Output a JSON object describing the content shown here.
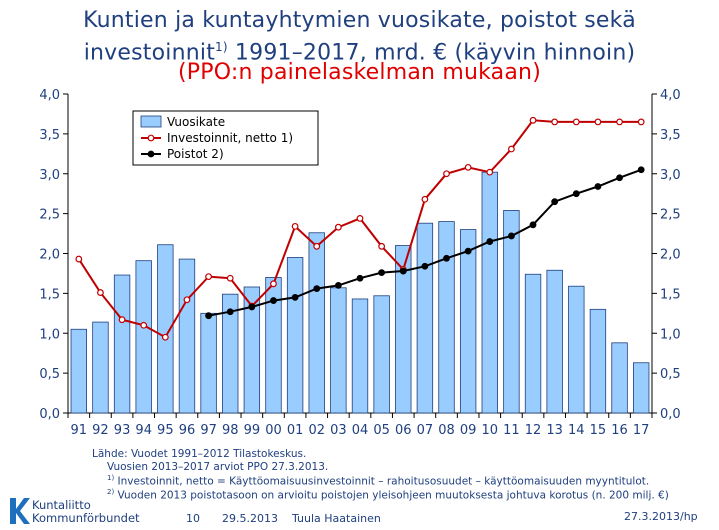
{
  "title": {
    "line1": "Kuntien ja kuntayhtymien vuosikate, poistot sekä",
    "line2_pre": "investoinnit",
    "line2_sup": "1)",
    "line2_post": " 1991–2017, mrd. € (käyvin hinnoin)",
    "line3": "(PPO:n painelaskelman mukaan)"
  },
  "colors": {
    "bar_fill": "#99ccff",
    "bar_stroke": "#1f3f7f",
    "investoinnit": "#c00000",
    "poistot": "#000000",
    "text": "#1f3f7f",
    "subtitle": "#e00000"
  },
  "chart_data": {
    "type": "bar+line",
    "categories": [
      "91",
      "92",
      "93",
      "94",
      "95",
      "96",
      "97",
      "98",
      "99",
      "00",
      "01",
      "02",
      "03",
      "04",
      "05",
      "06",
      "07",
      "08",
      "09",
      "10",
      "11",
      "12",
      "13",
      "14",
      "15",
      "16",
      "17"
    ],
    "y_ticks": [
      "0,0",
      "0,5",
      "1,0",
      "1,5",
      "2,0",
      "2,5",
      "3,0",
      "3,5",
      "4,0"
    ],
    "ylim": [
      0,
      4.0
    ],
    "grid": false,
    "legend_position": "top-left",
    "series": [
      {
        "name": "Vuosikate",
        "kind": "bar",
        "values": [
          1.05,
          1.14,
          1.73,
          1.91,
          2.11,
          1.93,
          1.25,
          1.49,
          1.58,
          1.7,
          1.95,
          2.26,
          1.57,
          1.43,
          1.47,
          2.1,
          2.38,
          2.4,
          2.3,
          3.02,
          2.54,
          1.74,
          1.79,
          1.59,
          1.3,
          0.88,
          0.63
        ]
      },
      {
        "name": "Investoinnit, netto 1)",
        "kind": "line-open-marker",
        "values": [
          1.93,
          1.51,
          1.17,
          1.1,
          0.95,
          1.42,
          1.71,
          1.69,
          1.34,
          1.62,
          2.34,
          2.09,
          2.33,
          2.44,
          2.09,
          1.8,
          2.68,
          3.0,
          3.08,
          3.02,
          3.31,
          3.67,
          3.65,
          3.65,
          3.65,
          3.65,
          3.65
        ]
      },
      {
        "name": "Poistot 2)",
        "kind": "line-filled-marker",
        "values": [
          null,
          null,
          null,
          null,
          null,
          null,
          1.22,
          1.27,
          1.33,
          1.41,
          1.45,
          1.56,
          1.6,
          1.69,
          1.76,
          1.78,
          1.84,
          1.94,
          2.03,
          2.15,
          2.22,
          2.36,
          2.65,
          2.75,
          2.84,
          2.95,
          3.05
        ]
      }
    ]
  },
  "footnotes": {
    "source1": "Lähde: Vuodet 1991–2012 Tilastokeskus.",
    "source2": "Vuosien 2013–2017 arviot PPO 27.3.2013.",
    "note1_sup": "1)",
    "note1": " Investoinnit, netto = Käyttöomaisuusinvestoinnit – rahoitusosuudet – käyttöomaisuuden myyntitulot.",
    "note2_sup": "2)",
    "note2": " Vuoden 2013 poistotasoon on arvioitu poistojen yleisohjeen muutoksesta johtuva korotus (n. 200 milj. €)"
  },
  "meta": {
    "logo_line1": "Kuntaliitto",
    "logo_line2": "Kommunförbundet",
    "page_number": "10",
    "date": "29.5.2013",
    "author": "Tuula Haatainen",
    "ref": "27.3.2013/hp"
  }
}
